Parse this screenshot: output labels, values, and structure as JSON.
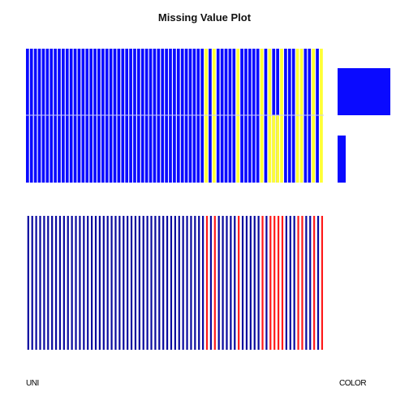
{
  "chart_data": {
    "type": "heatmap",
    "title": "Missing Value Plot",
    "n_columns": 75,
    "colors": {
      "present_top": "#0a0aff",
      "missing_top": "#ffff33",
      "present_bottom": "#0a0a9e",
      "missing_bottom": "#ff1a1a",
      "background": "#ffffff",
      "legend": "#0a0aff"
    },
    "missing_columns": [
      46,
      48,
      54,
      60,
      62,
      65,
      69,
      70,
      73,
      75
    ],
    "partial_missing_columns": [
      63,
      64
    ],
    "legend": {
      "present_fraction": 0.86,
      "missing_fraction": 0.14
    },
    "x_tick_labels": [
      "UNI",
      "COLOR"
    ]
  }
}
